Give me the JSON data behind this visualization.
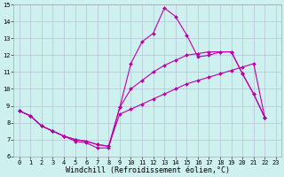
{
  "xlabel": "Windchill (Refroidissement éolien,°C)",
  "xlim": [
    -0.5,
    23.5
  ],
  "ylim": [
    6,
    15
  ],
  "xticks": [
    0,
    1,
    2,
    3,
    4,
    5,
    6,
    7,
    8,
    9,
    10,
    11,
    12,
    13,
    14,
    15,
    16,
    17,
    18,
    19,
    20,
    21,
    22,
    23
  ],
  "yticks": [
    6,
    7,
    8,
    9,
    10,
    11,
    12,
    13,
    14,
    15
  ],
  "background_color": "#cef0ee",
  "grid_color": "#b0b8cc",
  "line_color": "#bb00aa",
  "line1_x": [
    0,
    1,
    2,
    3,
    4,
    5,
    6,
    7,
    8,
    9,
    10,
    11,
    12,
    13,
    14,
    15,
    16,
    17,
    18,
    19,
    20,
    21,
    22
  ],
  "line1_y": [
    8.7,
    8.4,
    7.8,
    7.5,
    7.2,
    6.9,
    6.8,
    6.5,
    6.5,
    8.9,
    11.5,
    12.8,
    13.3,
    14.8,
    14.3,
    13.2,
    11.9,
    12.0,
    12.2,
    12.2,
    10.9,
    9.7,
    8.3
  ],
  "line2_x": [
    0,
    1,
    2,
    3,
    4,
    5,
    6,
    7,
    8,
    9,
    10,
    11,
    12,
    13,
    14,
    15,
    16,
    17,
    18,
    19,
    20,
    21,
    22
  ],
  "line2_y": [
    8.7,
    8.4,
    7.8,
    7.5,
    7.2,
    7.0,
    6.9,
    6.7,
    6.6,
    8.9,
    10.0,
    10.5,
    11.0,
    11.4,
    11.7,
    12.0,
    12.1,
    12.2,
    12.2,
    12.2,
    10.9,
    9.7,
    8.3
  ],
  "line3_x": [
    0,
    1,
    2,
    3,
    4,
    5,
    6,
    7,
    8,
    9,
    10,
    11,
    12,
    13,
    14,
    15,
    16,
    17,
    18,
    19,
    20,
    21,
    22
  ],
  "line3_y": [
    8.7,
    8.4,
    7.8,
    7.5,
    7.2,
    7.0,
    6.9,
    6.7,
    6.6,
    8.5,
    8.8,
    9.1,
    9.4,
    9.7,
    10.0,
    10.3,
    10.5,
    10.7,
    10.9,
    11.1,
    11.3,
    11.5,
    8.3
  ],
  "line_width": 0.8,
  "marker_size": 2.0,
  "tick_fontsize": 5.0,
  "xlabel_fontsize": 6.0
}
